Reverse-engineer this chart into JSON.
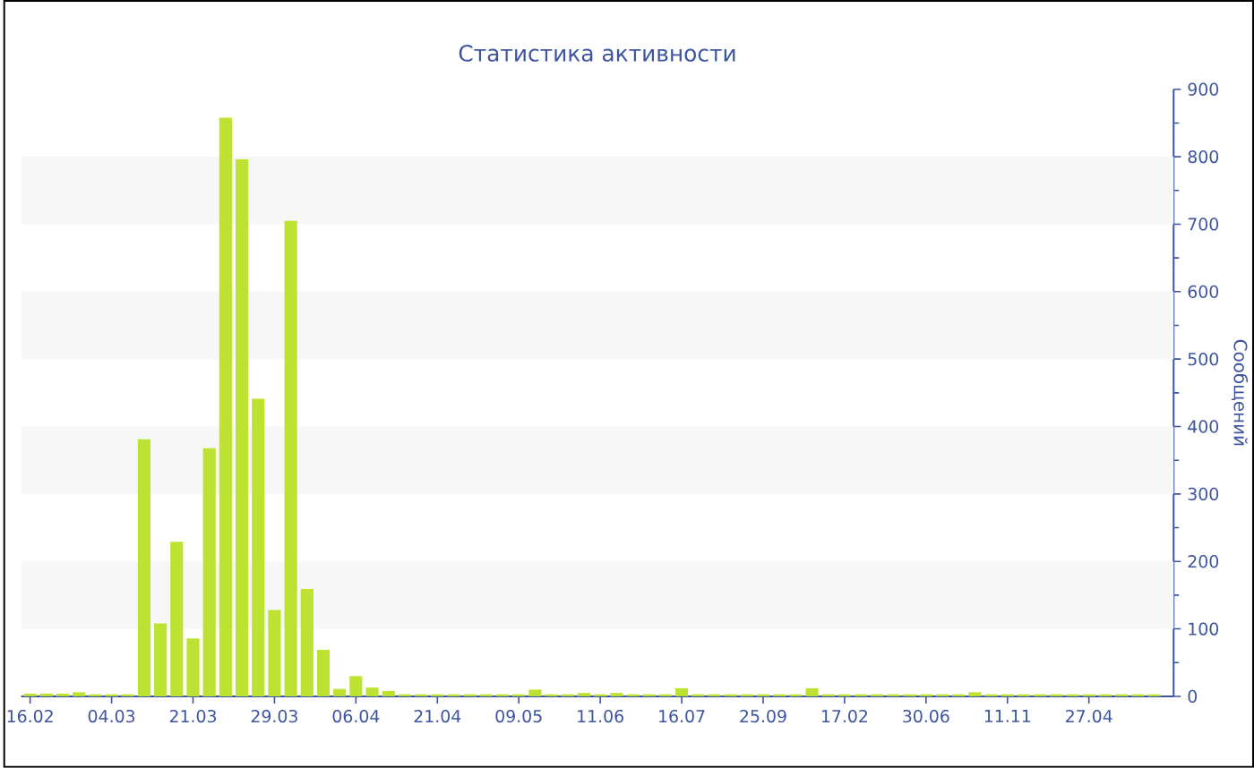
{
  "chart_data": {
    "type": "bar",
    "title": "Статистика активности",
    "ylabel": "Сообщений",
    "categories": [
      "16.02",
      null,
      null,
      null,
      null,
      "04.03",
      null,
      null,
      null,
      null,
      "21.03",
      null,
      null,
      null,
      null,
      "29.03",
      null,
      null,
      null,
      null,
      "06.04",
      null,
      null,
      null,
      null,
      "21.04",
      null,
      null,
      null,
      null,
      "09.05",
      null,
      null,
      null,
      null,
      "11.06",
      null,
      null,
      null,
      null,
      "16.07",
      null,
      null,
      null,
      null,
      "25.09",
      null,
      null,
      null,
      null,
      "17.02",
      null,
      null,
      null,
      null,
      "30.06",
      null,
      null,
      null,
      null,
      "11.11",
      null,
      null,
      null,
      null,
      "27.04",
      null,
      null,
      null,
      null
    ],
    "values": [
      4,
      4,
      4,
      6,
      3,
      3,
      3,
      381,
      108,
      229,
      86,
      368,
      858,
      796,
      441,
      128,
      705,
      159,
      69,
      11,
      30,
      13,
      8,
      3,
      3,
      3,
      3,
      3,
      3,
      3,
      3,
      10,
      3,
      3,
      5,
      3,
      5,
      3,
      3,
      3,
      12,
      3,
      3,
      3,
      3,
      3,
      3,
      3,
      12,
      3,
      3,
      3,
      3,
      3,
      3,
      3,
      3,
      3,
      6,
      3,
      3,
      3,
      3,
      3,
      3,
      3,
      3,
      3,
      3,
      3
    ],
    "color": "#bde232",
    "ylim": [
      0,
      900
    ],
    "yticks": [
      0,
      100,
      200,
      300,
      400,
      500,
      600,
      700,
      800,
      900
    ],
    "bands": [
      {
        "axis": "y",
        "from": 100,
        "to": 200,
        "color": "#f7f7f7"
      },
      {
        "axis": "y",
        "from": 300,
        "to": 400,
        "color": "#f7f7f7"
      },
      {
        "axis": "y",
        "from": 500,
        "to": 600,
        "color": "#f7f7f7"
      },
      {
        "axis": "y",
        "from": 700,
        "to": 800,
        "color": "#f7f7f7"
      }
    ]
  }
}
